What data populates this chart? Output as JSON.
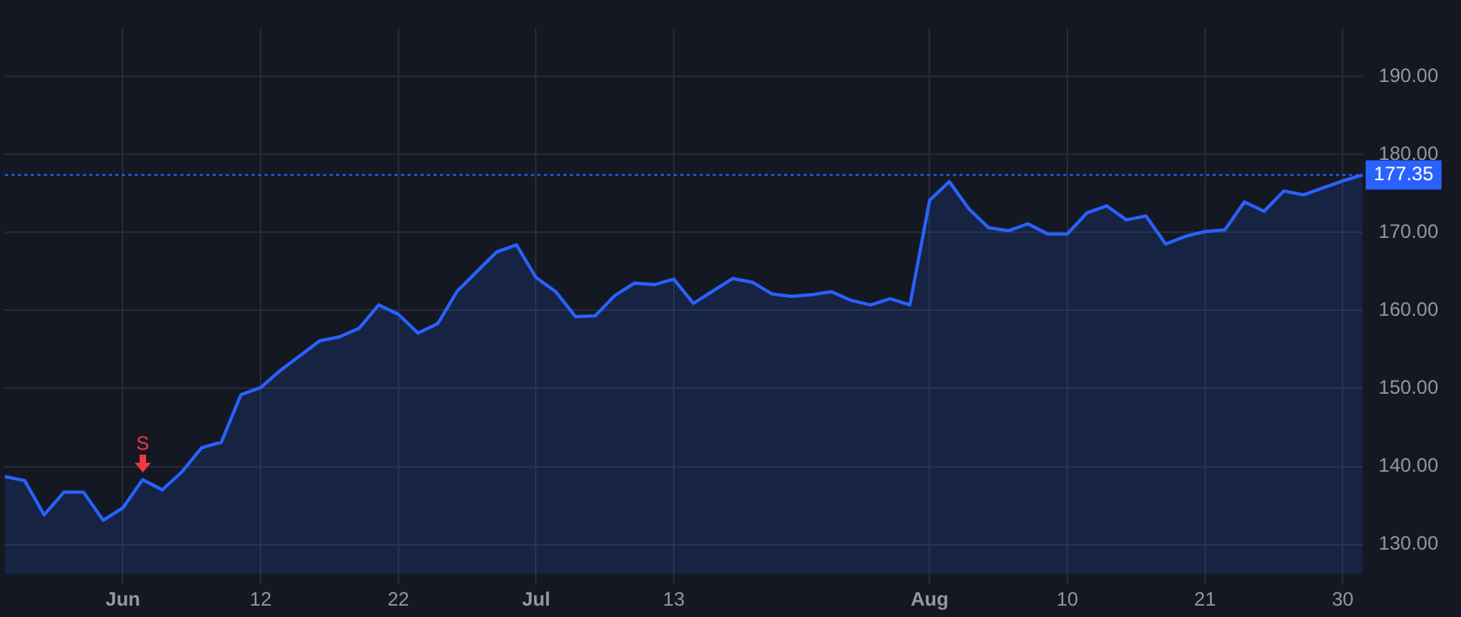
{
  "chart_data": {
    "type": "area",
    "categories": [
      null,
      null,
      null,
      null,
      null,
      null,
      "Jun",
      null,
      null,
      null,
      null,
      null,
      null,
      "12",
      null,
      null,
      null,
      null,
      null,
      null,
      "22",
      null,
      null,
      null,
      null,
      null,
      null,
      "Jul",
      null,
      null,
      null,
      null,
      null,
      null,
      "13",
      null,
      null,
      null,
      null,
      null,
      null,
      null,
      null,
      null,
      null,
      null,
      null,
      "Aug",
      null,
      null,
      null,
      null,
      null,
      null,
      "10",
      null,
      null,
      null,
      null,
      null,
      null,
      "21",
      null,
      null,
      null,
      null,
      null,
      null,
      "30",
      null
    ],
    "series": [
      {
        "color": "#2962ff",
        "values": [
          138.7,
          138.2,
          133.8,
          136.7,
          136.7,
          133.1,
          134.7,
          138.3,
          137.0,
          139.3,
          142.4,
          143.1,
          149.2,
          150.1,
          152.3,
          154.2,
          156.1,
          156.6,
          157.7,
          160.7,
          159.5,
          157.1,
          158.3,
          162.5,
          165.0,
          167.5,
          168.4,
          164.2,
          162.4,
          159.2,
          159.3,
          161.9,
          163.5,
          163.3,
          164.0,
          160.9,
          162.5,
          164.1,
          163.6,
          162.1,
          161.8,
          162.0,
          162.4,
          161.3,
          160.7,
          161.5,
          160.7,
          174.1,
          176.5,
          173.0,
          170.6,
          170.2,
          171.1,
          169.8,
          169.8,
          172.5,
          173.4,
          171.6,
          172.1,
          168.5,
          169.5,
          170.1,
          170.3,
          173.9,
          172.7,
          175.3,
          174.8,
          175.7,
          176.6,
          177.35
        ]
      }
    ],
    "ylim": [
      126.2,
      196.2
    ],
    "yticks": [
      {
        "value": 130,
        "label": "130.00"
      },
      {
        "value": 140,
        "label": "140.00"
      },
      {
        "value": 150,
        "label": "150.00"
      },
      {
        "value": 160,
        "label": "160.00"
      },
      {
        "value": 170,
        "label": "170.00"
      },
      {
        "value": 180,
        "label": "180.00"
      },
      {
        "value": 190,
        "label": "190.00"
      }
    ],
    "ref_lines": [
      {
        "axis": "y",
        "value": 177.35,
        "label": "177.35",
        "color": "#2962ff",
        "line_style": "dotted"
      }
    ],
    "annotations": [
      {
        "text": "S",
        "y": 138.3
      }
    ],
    "grid": true,
    "legend": false,
    "marker": "none",
    "line_style": "solid"
  }
}
